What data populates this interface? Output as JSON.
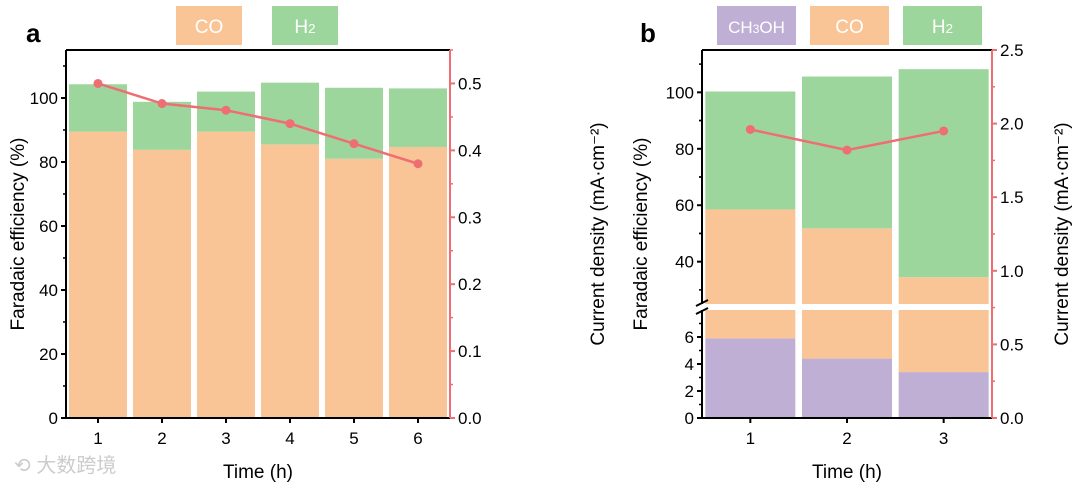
{
  "colors": {
    "co": "#f9c597",
    "h2": "#9dd69c",
    "ch3oh": "#c0afd4",
    "line": "#ee6e73",
    "axis": "#000000"
  },
  "watermark": "大数跨境",
  "chart_data": [
    {
      "panel_label": "a",
      "type": "bar",
      "stacked": true,
      "categories": [
        "1",
        "2",
        "3",
        "4",
        "5",
        "6"
      ],
      "xlabel": "Time (h)",
      "ylabel": "Faradaic efficiency (%)",
      "ylabel_right": "Current density (mA·cm⁻²)",
      "ylim": [
        0,
        115
      ],
      "ylim_right": [
        0,
        0.55
      ],
      "yticks": [
        "0",
        "20",
        "40",
        "60",
        "80",
        "100"
      ],
      "yticks_right": [
        "0.0",
        "0.1",
        "0.2",
        "0.3",
        "0.4",
        "0.5"
      ],
      "legend": [
        "CO",
        "H2"
      ],
      "legend_placement": "top",
      "series": [
        {
          "name": "CO",
          "values": [
            89.5,
            83.8,
            89.5,
            85.5,
            81.0,
            84.7
          ]
        },
        {
          "name": "H2",
          "values": [
            14.8,
            15.0,
            12.5,
            19.3,
            22.2,
            18.3
          ]
        }
      ],
      "line_series": {
        "name": "Current density",
        "values": [
          0.5,
          0.47,
          0.46,
          0.44,
          0.41,
          0.38
        ]
      }
    },
    {
      "panel_label": "b",
      "type": "bar",
      "stacked": true,
      "categories": [
        "1",
        "2",
        "3"
      ],
      "xlabel": "Time (h)",
      "ylabel": "Faradaic efficiency (%)",
      "ylabel_right": "Current density (mA·cm⁻²)",
      "axis_break": {
        "lower": [
          0,
          8
        ],
        "upper": [
          25,
          115
        ]
      },
      "yticks_lower": [
        "0",
        "2",
        "4",
        "6"
      ],
      "yticks_upper": [
        "40",
        "60",
        "80",
        "100"
      ],
      "ylim_right": [
        0,
        2.5
      ],
      "yticks_right": [
        "0.0",
        "0.5",
        "1.0",
        "1.5",
        "2.0",
        "2.5"
      ],
      "legend": [
        "CH3OH",
        "CO",
        "H2"
      ],
      "legend_placement": "top",
      "series": [
        {
          "name": "CH3OH",
          "values": [
            5.9,
            4.4,
            3.4
          ]
        },
        {
          "name": "CO",
          "values": [
            52.6,
            47.4,
            31.1
          ]
        },
        {
          "name": "H2",
          "values": [
            41.8,
            53.8,
            73.7
          ]
        }
      ],
      "line_series": {
        "name": "Current density",
        "values": [
          1.96,
          1.82,
          1.95
        ]
      }
    }
  ]
}
